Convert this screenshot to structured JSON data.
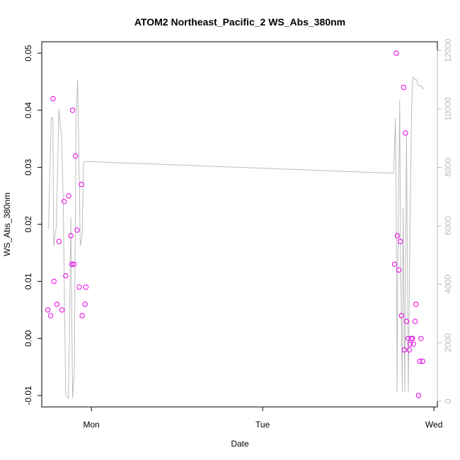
{
  "chart_data": {
    "type": "scatter",
    "title": "ATOM2 Northeast_Pacific_2 WS_Abs_380nm",
    "xlabel": "Date",
    "ylabel": "WS_Abs_380nm",
    "xlim": [
      -0.29,
      2.02
    ],
    "ylim": [
      -0.012,
      0.052
    ],
    "x_ticks": [
      {
        "value": 0,
        "label": "Mon"
      },
      {
        "value": 1,
        "label": "Tue"
      },
      {
        "value": 2,
        "label": "Wed"
      }
    ],
    "y_ticks": [
      -0.01,
      0.0,
      0.01,
      0.02,
      0.03,
      0.04,
      0.05
    ],
    "y_tick_labels": [
      "-0.01",
      "0.00",
      "0.01",
      "0.02",
      "0.03",
      "0.04",
      "0.05"
    ],
    "y2_lim": [
      -200,
      12300
    ],
    "y2_ticks": [
      0,
      2000,
      4000,
      6000,
      8000,
      10000,
      12000
    ],
    "y2_tick_labels": [
      "0",
      "2000",
      "4000",
      "6000",
      "8000",
      "10000",
      "12000"
    ],
    "grid": false,
    "points": {
      "color": "#e600e6",
      "x": [
        -0.254,
        -0.238,
        -0.224,
        -0.219,
        -0.202,
        -0.189,
        -0.172,
        -0.159,
        -0.15,
        -0.133,
        -0.12,
        -0.115,
        -0.11,
        -0.102,
        -0.093,
        -0.084,
        -0.071,
        -0.058,
        -0.054,
        -0.037,
        -0.032,
        1.77,
        1.78,
        1.786,
        1.795,
        1.804,
        1.811,
        1.823,
        1.827,
        1.834,
        1.84,
        1.849,
        1.856,
        1.861,
        1.868,
        1.875,
        1.88,
        1.89,
        1.895,
        1.91,
        1.917,
        1.924,
        1.934
      ],
      "y": [
        0.005,
        0.004,
        0.042,
        0.01,
        0.006,
        0.017,
        0.005,
        0.024,
        0.011,
        0.025,
        0.018,
        0.013,
        0.04,
        0.013,
        0.032,
        0.019,
        0.009,
        0.027,
        0.004,
        0.006,
        0.009,
        0.013,
        0.05,
        0.018,
        0.012,
        0.017,
        0.004,
        0.044,
        -0.002,
        0.036,
        0.003,
        0.0,
        -0.002,
        -0.001,
        0.0,
        0.0,
        -0.001,
        0.003,
        0.006,
        -0.01,
        -0.004,
        0.0,
        -0.004
      ]
    },
    "line": {
      "color": "#bdbdbd",
      "x": [
        -0.25,
        -0.235,
        -0.225,
        -0.22,
        -0.205,
        -0.19,
        -0.18,
        -0.175,
        -0.165,
        -0.15,
        -0.135,
        -0.13,
        -0.12,
        -0.115,
        -0.11,
        -0.1,
        -0.09,
        -0.08,
        -0.065,
        -0.06,
        -0.055,
        -0.045,
        -0.035,
        -0.03,
        1.76,
        1.765,
        1.775,
        1.78,
        1.785,
        1.79,
        1.8,
        1.805,
        1.815,
        1.82,
        1.83,
        1.84,
        1.85,
        1.855,
        1.86,
        1.87,
        1.875,
        1.88,
        1.89,
        1.9,
        1.905,
        1.915,
        1.925,
        1.935,
        1.945
      ],
      "y": [
        5900,
        9700,
        9700,
        5300,
        6000,
        10000,
        9300,
        9200,
        7000,
        200,
        100,
        1600,
        6300,
        3200,
        100,
        1000,
        9600,
        11000,
        5300,
        5500,
        5600,
        8200,
        8200,
        8200,
        7800,
        7800,
        9700,
        7000,
        300,
        5000,
        10300,
        5000,
        300,
        6600,
        300,
        9100,
        300,
        2800,
        6100,
        10000,
        11000,
        11100,
        11000,
        11000,
        10800,
        10800,
        10800,
        10700,
        10700
      ]
    }
  }
}
